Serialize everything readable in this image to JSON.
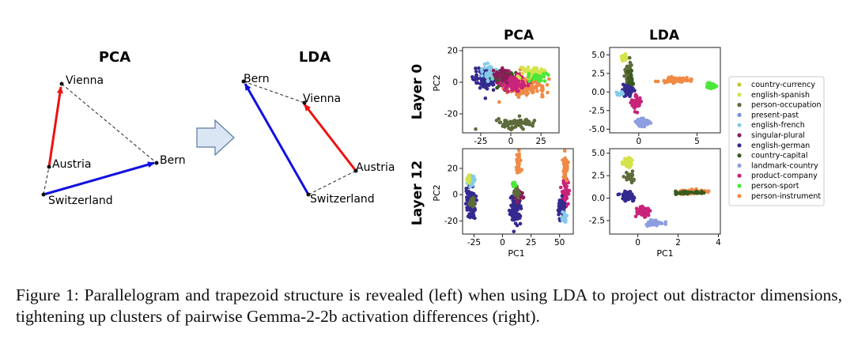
{
  "figure": {
    "caption": "Figure 1: Parallelogram and trapezoid structure is revealed (left) when using LDA to project out distractor dimensions, tightening up clusters of pairwise Gemma-2-2b activation differences (right).",
    "left_panels": [
      {
        "title": "PCA",
        "points": [
          {
            "label": "Vienna"
          },
          {
            "label": "Austria"
          },
          {
            "label": "Switzerland"
          },
          {
            "label": "Bern"
          }
        ]
      },
      {
        "title": "LDA",
        "points": [
          {
            "label": "Bern"
          },
          {
            "label": "Vienna"
          },
          {
            "label": "Austria"
          },
          {
            "label": "Switzerland"
          }
        ]
      }
    ],
    "grid": {
      "column_titles": [
        "PCA",
        "LDA"
      ],
      "row_titles": [
        "Layer 0",
        "Layer 12"
      ],
      "ylabel": "PC2",
      "xlabel": "PC1"
    }
  },
  "chart_data": [
    {
      "type": "scatter",
      "panel": "Layer 0 PCA",
      "xticks": [
        -25,
        0,
        25
      ],
      "yticks": [
        20,
        0,
        -20
      ],
      "xlim": [
        -40,
        40
      ],
      "ylim": [
        -32,
        22
      ],
      "ylabel": "PC2",
      "clusters": [
        {
          "series": "person-instrument",
          "center": [
            12,
            -2
          ],
          "spread": [
            16,
            6
          ],
          "n": 220
        },
        {
          "series": "person-occupation",
          "center": [
            5,
            -26
          ],
          "spread": [
            16,
            3
          ],
          "n": 70
        },
        {
          "series": "english-german",
          "center": [
            -20,
            2
          ],
          "spread": [
            10,
            6
          ],
          "n": 150
        },
        {
          "series": "country-capital",
          "center": [
            -5,
            3
          ],
          "spread": [
            10,
            5
          ],
          "n": 110
        },
        {
          "series": "product-company",
          "center": [
            3,
            0
          ],
          "spread": [
            10,
            5
          ],
          "n": 110
        },
        {
          "series": "english-french",
          "center": [
            -18,
            6
          ],
          "spread": [
            8,
            5
          ],
          "n": 45
        },
        {
          "series": "english-spanish",
          "center": [
            18,
            6
          ],
          "spread": [
            10,
            4
          ],
          "n": 45
        },
        {
          "series": "singular-plural",
          "center": [
            -8,
            5
          ],
          "spread": [
            6,
            4
          ],
          "n": 40
        },
        {
          "series": "person-sport",
          "center": [
            22,
            3
          ],
          "spread": [
            8,
            3
          ],
          "n": 30
        }
      ]
    },
    {
      "type": "scatter",
      "panel": "Layer 0 LDA",
      "yticks": [
        5.0,
        2.5,
        0.0,
        -2.5,
        -5.0
      ],
      "xticks": [
        0,
        5
      ],
      "xlim": [
        -2.5,
        7
      ],
      "ylim": [
        -5.5,
        6
      ],
      "clusters": [
        {
          "series": "english-spanish",
          "center": [
            -1.2,
            4.6
          ],
          "spread": [
            0.25,
            0.4
          ],
          "n": 30
        },
        {
          "series": "person-occupation",
          "center": [
            -0.9,
            2.3
          ],
          "spread": [
            0.3,
            1.6
          ],
          "n": 70
        },
        {
          "series": "country-capital",
          "center": [
            -0.7,
            1.5
          ],
          "spread": [
            0.25,
            1.0
          ],
          "n": 40
        },
        {
          "series": "person-instrument",
          "center": [
            3.2,
            1.6
          ],
          "spread": [
            1.2,
            0.3
          ],
          "n": 70
        },
        {
          "series": "person-sport",
          "center": [
            6.2,
            0.8
          ],
          "spread": [
            0.35,
            0.4
          ],
          "n": 50
        },
        {
          "series": "english-german",
          "center": [
            -1.0,
            0.2
          ],
          "spread": [
            0.5,
            0.7
          ],
          "n": 60
        },
        {
          "series": "product-company",
          "center": [
            -0.2,
            -1.5
          ],
          "spread": [
            0.4,
            0.8
          ],
          "n": 60
        },
        {
          "series": "landmark-country",
          "center": [
            0.3,
            -4.1
          ],
          "spread": [
            0.5,
            0.5
          ],
          "n": 50
        },
        {
          "series": "english-french",
          "center": [
            -1.6,
            -0.2
          ],
          "spread": [
            0.3,
            0.3
          ],
          "n": 15
        }
      ]
    },
    {
      "type": "scatter",
      "panel": "Layer 12 PCA",
      "xticks": [
        -25,
        0,
        25,
        50
      ],
      "yticks": [
        20,
        0,
        -20
      ],
      "xlim": [
        -35,
        62
      ],
      "ylim": [
        -30,
        35
      ],
      "ylabel": "PC2",
      "xlabel": "PC1",
      "clusters": [
        {
          "series": "english-german",
          "center": [
            -28,
            -5
          ],
          "spread": [
            4,
            12
          ],
          "n": 130
        },
        {
          "series": "english-french",
          "center": [
            -27,
            10
          ],
          "spread": [
            3,
            4
          ],
          "n": 25
        },
        {
          "series": "english-spanish",
          "center": [
            -30,
            12
          ],
          "spread": [
            2,
            3
          ],
          "n": 15
        },
        {
          "series": "person-occupation",
          "center": [
            -26,
            -6
          ],
          "spread": [
            3,
            4
          ],
          "n": 25
        },
        {
          "series": "english-german",
          "center": [
            12,
            -10
          ],
          "spread": [
            5,
            12
          ],
          "n": 90
        },
        {
          "series": "person-instrument",
          "center": [
            14,
            24
          ],
          "spread": [
            2,
            8
          ],
          "n": 40
        },
        {
          "series": "singular-plural",
          "center": [
            14,
            0
          ],
          "spread": [
            3,
            4
          ],
          "n": 30
        },
        {
          "series": "person-occupation",
          "center": [
            13,
            2
          ],
          "spread": [
            3,
            4
          ],
          "n": 25
        },
        {
          "series": "product-company",
          "center": [
            55,
            2
          ],
          "spread": [
            3,
            10
          ],
          "n": 50
        },
        {
          "series": "person-instrument",
          "center": [
            55,
            20
          ],
          "spread": [
            2,
            8
          ],
          "n": 40
        },
        {
          "series": "english-german",
          "center": [
            52,
            -10
          ],
          "spread": [
            3,
            8
          ],
          "n": 50
        },
        {
          "series": "english-french",
          "center": [
            54,
            -18
          ],
          "spread": [
            2,
            4
          ],
          "n": 15
        },
        {
          "series": "person-sport",
          "center": [
            10,
            8
          ],
          "spread": [
            2,
            2
          ],
          "n": 10
        }
      ]
    },
    {
      "type": "scatter",
      "panel": "Layer 12 LDA",
      "yticks": [
        5.0,
        2.5,
        0.0,
        -2.5
      ],
      "xticks": [
        0,
        2,
        4
      ],
      "xlim": [
        -1.4,
        4.1
      ],
      "ylim": [
        -4.0,
        5.5
      ],
      "xlabel": "PC1",
      "clusters": [
        {
          "series": "english-spanish",
          "center": [
            -0.5,
            3.9
          ],
          "spread": [
            0.25,
            0.45
          ],
          "n": 40
        },
        {
          "series": "person-occupation",
          "center": [
            -0.4,
            2.3
          ],
          "spread": [
            0.22,
            0.55
          ],
          "n": 40
        },
        {
          "series": "english-german",
          "center": [
            -0.5,
            0.2
          ],
          "spread": [
            0.3,
            0.5
          ],
          "n": 60
        },
        {
          "series": "product-company",
          "center": [
            0.3,
            -1.5
          ],
          "spread": [
            0.35,
            0.55
          ],
          "n": 60
        },
        {
          "series": "landmark-country",
          "center": [
            0.8,
            -2.8
          ],
          "spread": [
            0.5,
            0.3
          ],
          "n": 45
        },
        {
          "series": "person-instrument",
          "center": [
            2.7,
            0.7
          ],
          "spread": [
            0.7,
            0.22
          ],
          "n": 80
        },
        {
          "series": "country-capital",
          "center": [
            2.3,
            0.6
          ],
          "spread": [
            0.8,
            0.18
          ],
          "n": 35
        }
      ]
    }
  ],
  "legend": {
    "placement": "right",
    "items": [
      {
        "label": "country-currency",
        "color": "#c5c83a"
      },
      {
        "label": "english-spanish",
        "color": "#d4e34a"
      },
      {
        "label": "person-occupation",
        "color": "#5e6b3b"
      },
      {
        "label": "present-past",
        "color": "#7a8fe0"
      },
      {
        "label": "english-french",
        "color": "#85cbe8"
      },
      {
        "label": "singular-plural",
        "color": "#8b1c5a"
      },
      {
        "label": "english-german",
        "color": "#352a8f"
      },
      {
        "label": "country-capital",
        "color": "#3a5a1e"
      },
      {
        "label": "landmark-country",
        "color": "#8d9ee0"
      },
      {
        "label": "product-company",
        "color": "#c9237a"
      },
      {
        "label": "person-sport",
        "color": "#4be83a"
      },
      {
        "label": "person-instrument",
        "color": "#f08a45"
      }
    ]
  }
}
